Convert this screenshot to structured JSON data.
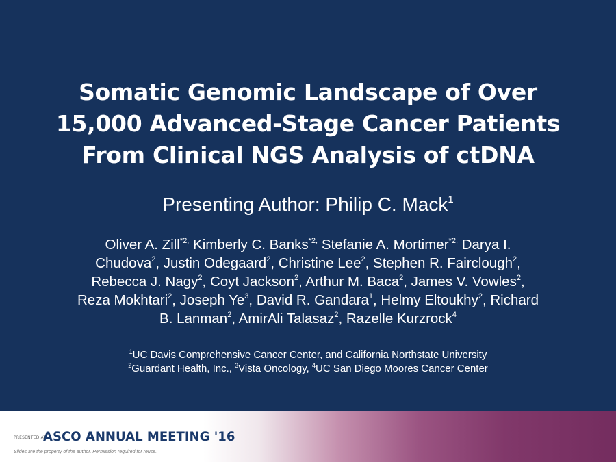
{
  "title": {
    "lines": [
      "Somatic Genomic Landscape of Over",
      "15,000 Advanced-Stage Cancer Patients",
      "From Clinical NGS Analysis of ctDNA"
    ]
  },
  "presenting": {
    "text": "Presenting Author: Philip C. Mack",
    "sup": "1"
  },
  "authors": {
    "line1": {
      "a1": "Oliver A. Zill",
      "s1": "*2,",
      "a2": " Kimberly C. Banks",
      "s2": "*2,",
      "a3": " Stefanie A. Mortimer",
      "s3": "*2,",
      "a4": " Darya I."
    },
    "line2": {
      "a1": "Chudova",
      "s1": "2",
      "a2": ", Justin Odegaard",
      "s2": "2",
      "a3": ", Christine Lee",
      "s3": "2",
      "a4": ", Stephen R. Fairclough",
      "s4": "2",
      "a5": ","
    },
    "line3": {
      "a1": "Rebecca J. Nagy",
      "s1": "2",
      "a2": ", Coyt Jackson",
      "s2": "2",
      "a3": ", Arthur M. Baca",
      "s3": "2",
      "a4": ", James V. Vowles",
      "s4": "2",
      "a5": ","
    },
    "line4": {
      "a1": "Reza Mokhtari",
      "s1": "2",
      "a2": ", Joseph Ye",
      "s2": "3",
      "a3": ", David R. Gandara",
      "s3": "1",
      "a4": ", Helmy Eltoukhy",
      "s4": "2",
      "a5": ", Richard"
    },
    "line5": {
      "a1": "B. Lanman",
      "s1": "2",
      "a2": ", AmirAli Talasaz",
      "s2": "2",
      "a3": ", Razelle Kurzrock",
      "s3": "4"
    }
  },
  "affiliations": {
    "line1": {
      "s1": "1",
      "t1": "UC Davis Comprehensive Cancer Center, and California Northstate University"
    },
    "line2": {
      "s1": "2",
      "t1": "Guardant Health, Inc., ",
      "s2": "3",
      "t2": "Vista Oncology, ",
      "s3": "4",
      "t3": "UC San Diego Moores Cancer Center"
    }
  },
  "footer": {
    "presented_at": "PRESENTED AT:",
    "meeting": "ASCO ANNUAL MEETING '16",
    "disclaimer": "Slides are the property of the author. Permission required for reuse."
  },
  "colors": {
    "background": "#16325c",
    "band_end": "#742d5f",
    "meeting_text": "#1b3a6b"
  }
}
